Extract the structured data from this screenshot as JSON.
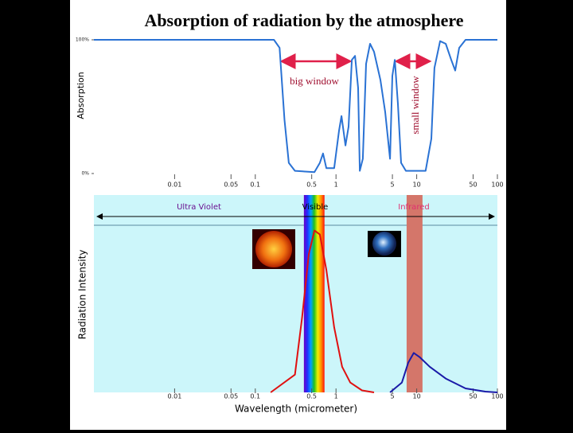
{
  "chart_data": [
    {
      "type": "line",
      "title": "Absorption of radiation by the atmosphere",
      "ylabel": "Absorption",
      "xscale": "log",
      "xlim": [
        0.001,
        100
      ],
      "xticks": [
        0.01,
        0.05,
        0.1,
        0.5,
        1,
        5,
        10,
        50,
        100
      ],
      "ylim": [
        0,
        100
      ],
      "yticks": [
        {
          "value": 0,
          "label": "0%"
        },
        {
          "value": 100,
          "label": "100%"
        }
      ],
      "annotations": [
        "big window",
        "small window"
      ],
      "series": [
        {
          "color": "#2a72d4",
          "x": [
            0.001,
            0.17,
            0.2,
            0.23,
            0.26,
            0.31,
            0.54,
            0.63,
            0.69,
            0.76,
            0.95,
            1.09,
            1.17,
            1.31,
            1.43,
            1.57,
            1.72,
            1.88,
            1.97,
            2.15,
            2.36,
            2.64,
            2.96,
            3.55,
            4.07,
            4.46,
            4.67,
            4.99,
            5.35,
            5.85,
            6.41,
            7.35,
            12.9,
            15.2,
            16.6,
            19.5,
            22.9,
            26.8,
            30.0,
            33.6,
            40.3,
            100
          ],
          "values": [
            100,
            100,
            94,
            40,
            8,
            2,
            1,
            8,
            15,
            4,
            4,
            32,
            43,
            21,
            35,
            85,
            88,
            64,
            2,
            11,
            82,
            97,
            91,
            70,
            46,
            23,
            11,
            73,
            85,
            52,
            8,
            2,
            2,
            26,
            79,
            99,
            97,
            85,
            77,
            94,
            100,
            100
          ]
        }
      ]
    },
    {
      "type": "line",
      "xlabel": "Wavelength (micrometer)",
      "ylabel": "Radiation Intensity",
      "xscale": "log",
      "xlim": [
        0.001,
        100
      ],
      "xticks": [
        0.01,
        0.05,
        0.1,
        0.5,
        1,
        5,
        10,
        50,
        100
      ],
      "ylim": [
        0,
        100
      ],
      "regions": [
        "Ultra Violet",
        "Visible",
        "Infrared"
      ],
      "bands": [
        {
          "label": "Visible",
          "range": [
            0.4,
            0.72
          ]
        },
        {
          "label": "Infrared",
          "range": [
            7.5,
            11.8
          ]
        }
      ],
      "series": [
        {
          "color": "#e01010",
          "x": [
            0.155,
            0.31,
            0.38,
            0.46,
            0.54,
            0.63,
            0.76,
            0.95,
            1.19,
            1.5,
            2.1,
            2.96
          ],
          "values": [
            0,
            9,
            38,
            70,
            82,
            80,
            62,
            33,
            13,
            5,
            1,
            0
          ]
        },
        {
          "color": "#1a1aa8",
          "x": [
            4.67,
            6.56,
            7.85,
            9.2,
            10.8,
            14.5,
            22.9,
            40.3,
            71,
            100
          ],
          "values": [
            0,
            5,
            15,
            20,
            18,
            13,
            7,
            2,
            0.4,
            0
          ]
        }
      ]
    }
  ]
}
